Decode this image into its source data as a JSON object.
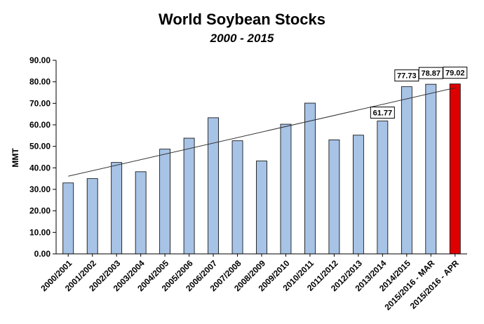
{
  "chart_data": {
    "type": "bar",
    "title": "World Soybean Stocks",
    "subtitle": "2000 - 2015",
    "ylabel": "MMT",
    "xlabel": "",
    "ylim": [
      0,
      90
    ],
    "yticks": [
      "0.00",
      "10.00",
      "20.00",
      "30.00",
      "40.00",
      "50.00",
      "60.00",
      "70.00",
      "80.00",
      "90.00"
    ],
    "categories": [
      "2000/2001",
      "2001/2002",
      "2002/2003",
      "2003/2004",
      "2004/2005",
      "2005/2006",
      "2006/2007",
      "2007/2008",
      "2008/2009",
      "2009/2010",
      "2010/2011",
      "2011/2012",
      "2012/2013",
      "2013/2014",
      "2014/2015",
      "2015/2016 - MAR",
      "2015/2016 - APR"
    ],
    "values": [
      33,
      35,
      42.5,
      38.2,
      48.7,
      53.8,
      63.3,
      52.6,
      43.2,
      60.3,
      70.1,
      53,
      55.2,
      61.77,
      77.73,
      78.87,
      79.02
    ],
    "data_labels": [
      "",
      "",
      "",
      "",
      "",
      "",
      "",
      "",
      "",
      "",
      "",
      "",
      "",
      "61.77",
      "77.73",
      "78.87",
      "79.02"
    ],
    "bar_colors": [
      "#a7c3e6",
      "#a7c3e6",
      "#a7c3e6",
      "#a7c3e6",
      "#a7c3e6",
      "#a7c3e6",
      "#a7c3e6",
      "#a7c3e6",
      "#a7c3e6",
      "#a7c3e6",
      "#a7c3e6",
      "#a7c3e6",
      "#a7c3e6",
      "#a7c3e6",
      "#a7c3e6",
      "#a7c3e6",
      "#dd0000"
    ],
    "trendline": {
      "start": 36.1,
      "end": 77.2
    },
    "grid": false,
    "legend": "none"
  }
}
